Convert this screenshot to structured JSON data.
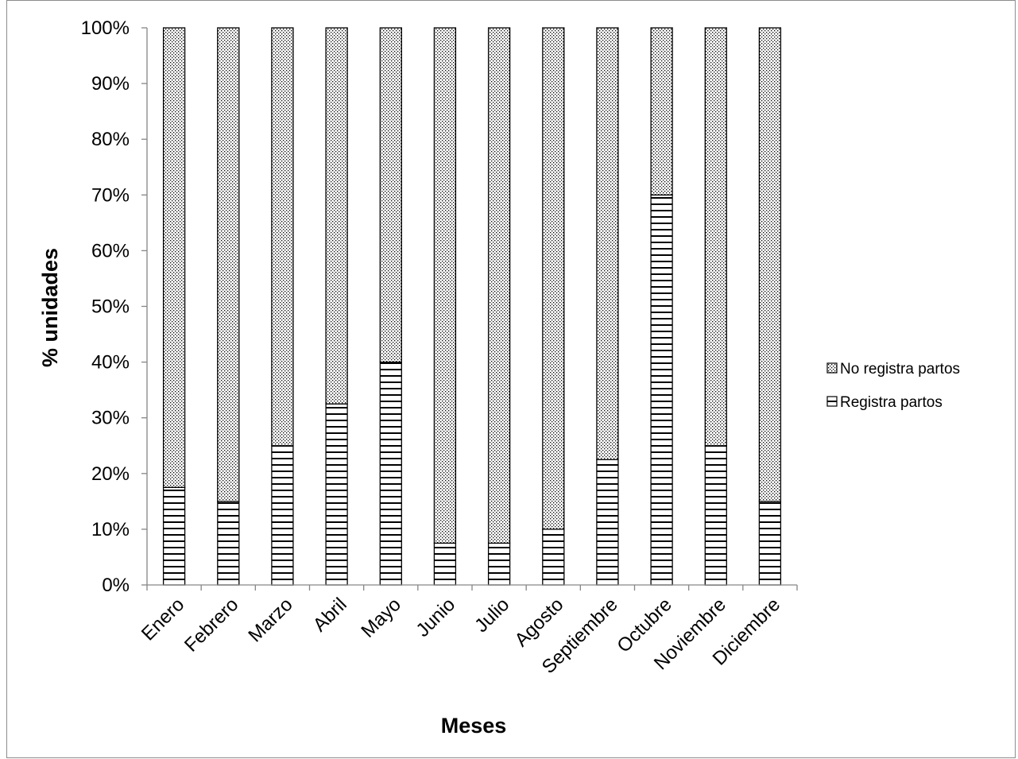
{
  "chart_data": {
    "type": "bar",
    "stacked": true,
    "percent_stacked": true,
    "categories": [
      "Enero",
      "Febrero",
      "Marzo",
      "Abril",
      "Mayo",
      "Junio",
      "Julio",
      "Agosto",
      "Septiembre",
      "Octubre",
      "Noviembre",
      "Diciembre"
    ],
    "series": [
      {
        "name": "Registra partos",
        "pattern": "horizontal-stripes",
        "values": [
          17.5,
          15,
          25,
          32.5,
          40,
          7.5,
          7.5,
          10,
          22.5,
          70,
          25,
          15
        ]
      },
      {
        "name": "No registra partos",
        "pattern": "dotted",
        "values": [
          82.5,
          85,
          75,
          67.5,
          60,
          92.5,
          92.5,
          90,
          77.5,
          30,
          75,
          85
        ]
      }
    ],
    "yticks": [
      "0%",
      "10%",
      "20%",
      "30%",
      "40%",
      "50%",
      "60%",
      "70%",
      "80%",
      "90%",
      "100%"
    ],
    "ylim": [
      0,
      100
    ],
    "xlabel": "Meses",
    "ylabel": "% unidades",
    "legend_position": "right",
    "legend_order": [
      "No registra partos",
      "Registra partos"
    ],
    "grid": false
  }
}
